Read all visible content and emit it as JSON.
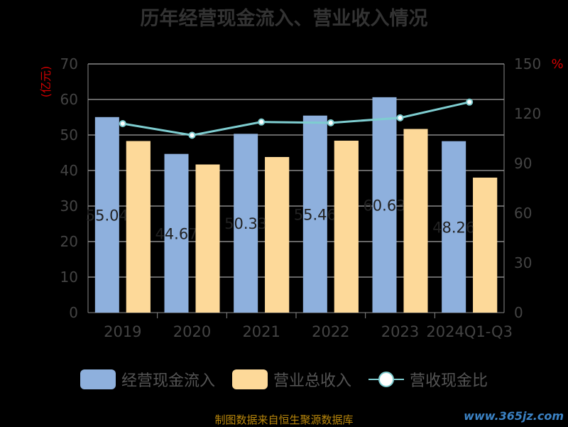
{
  "chart_data": {
    "type": "bar",
    "title": "历年经营现金流入、营业收入情况",
    "categories": [
      "2019",
      "2020",
      "2021",
      "2022",
      "2023",
      "2024Q1-Q3"
    ],
    "left_axis": {
      "label": "(亿元)",
      "range": [
        0,
        70
      ],
      "ticks": [
        "0",
        "10",
        "20",
        "30",
        "40",
        "50",
        "60",
        "70"
      ]
    },
    "right_axis": {
      "label": "%",
      "range": [
        0,
        150
      ],
      "ticks": [
        "0",
        "30",
        "60",
        "90",
        "120",
        "150"
      ]
    },
    "series": [
      {
        "name": "经营现金流入",
        "type": "bar",
        "axis": "left",
        "color": "#8eb0dd",
        "values": [
          55.04,
          44.67,
          50.33,
          55.46,
          60.63,
          48.26
        ],
        "labels": [
          "55.04",
          "44.67",
          "50.33",
          "55.46",
          "60.63",
          "48.26"
        ]
      },
      {
        "name": "营业总收入",
        "type": "bar",
        "axis": "left",
        "color": "#fdd999",
        "values": [
          48.3,
          41.7,
          43.8,
          48.4,
          51.7,
          38.0
        ]
      },
      {
        "name": "营收现金比",
        "type": "line",
        "axis": "right",
        "color": "#7ecdd0",
        "values": [
          114.0,
          107.0,
          115.0,
          114.5,
          117.5,
          127.0
        ]
      }
    ],
    "grid": true,
    "legend_position": "bottom"
  },
  "source": "制图数据来自恒生聚源数据库",
  "watermark": "www.365jz.com",
  "colors": {
    "axis_label": "#d40000",
    "tick": "#444444",
    "grid": "#cccccc",
    "title": "#333333"
  }
}
